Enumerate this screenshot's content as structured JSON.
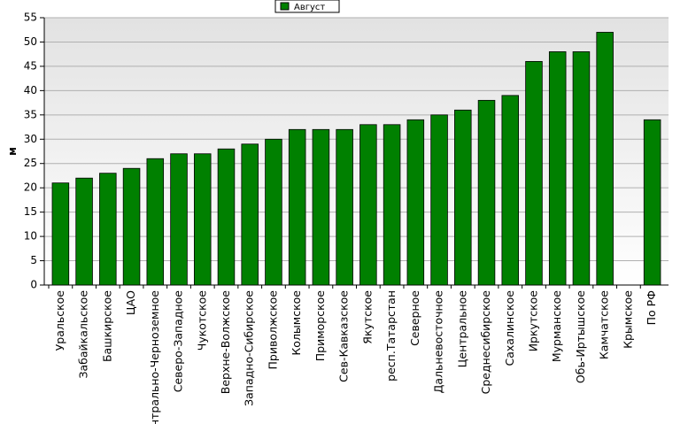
{
  "chart_data": {
    "type": "bar",
    "y_label": "м",
    "categories": [
      "Уральское",
      "Забайкальское",
      "Башкирское",
      "ЦАО",
      "Центрально-Черноземное",
      "Северо-Западное",
      "Чукотское",
      "Верхне-Волжское",
      "Западно-Сибирское",
      "Приволжское",
      "Колымское",
      "Приморское",
      "Сев-Кавказское",
      "Якутское",
      "респ.Татарстан",
      "Северное",
      "Дальневосточное",
      "Центральное",
      "Среднесибирское",
      "Сахалинское",
      "Иркутское",
      "Мурманское",
      "Обь-Иртышское",
      "Камчатское",
      "Крымское",
      "По РФ"
    ],
    "series": [
      {
        "name": "Август",
        "color": "#008000",
        "values": [
          21,
          22,
          23,
          24,
          26,
          27,
          27,
          28,
          29,
          30,
          32,
          32,
          32,
          33,
          33,
          34,
          35,
          36,
          38,
          39,
          46,
          48,
          48,
          52,
          null,
          34
        ]
      }
    ],
    "ylim": [
      0,
      55
    ],
    "yticks": [
      0,
      5,
      10,
      15,
      20,
      25,
      30,
      35,
      40,
      45,
      50,
      55
    ],
    "grid": true,
    "legend": "top"
  }
}
